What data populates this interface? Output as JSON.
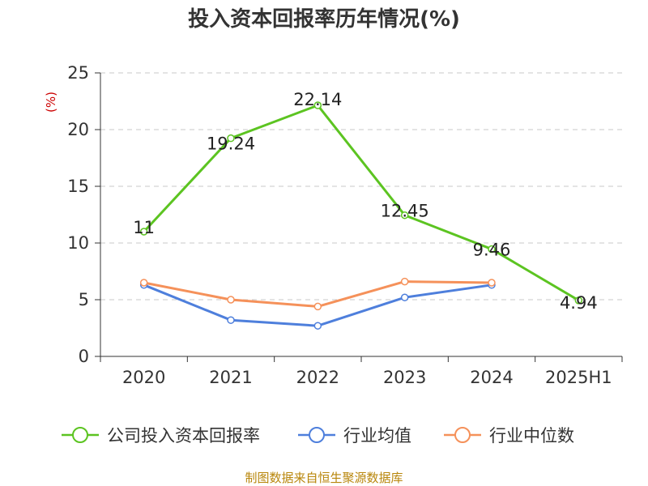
{
  "chart_data": {
    "type": "line",
    "title": "投入资本回报率历年情况(%)",
    "unit_label": "(%)",
    "categories": [
      "2020",
      "2021",
      "2022",
      "2023",
      "2024",
      "2025H1"
    ],
    "ylim": [
      0,
      25
    ],
    "yticks": [
      0,
      5,
      10,
      15,
      20,
      25
    ],
    "grid": true,
    "legend_position": "bottom",
    "series": [
      {
        "name": "公司投入资本回报率",
        "color": "#5cc421",
        "values": [
          11,
          19.24,
          22.14,
          12.45,
          9.46,
          4.94
        ],
        "labels": [
          "11",
          "19.24",
          "22.14",
          "12.45",
          "9.46",
          "4.94"
        ]
      },
      {
        "name": "行业均值",
        "color": "#4e7fdc",
        "values": [
          6.3,
          3.2,
          2.7,
          5.2,
          6.3,
          null
        ]
      },
      {
        "name": "行业中位数",
        "color": "#f5915a",
        "values": [
          6.5,
          5.0,
          4.4,
          6.6,
          6.5,
          null
        ]
      }
    ]
  },
  "source": "制图数据来自恒生聚源数据库"
}
